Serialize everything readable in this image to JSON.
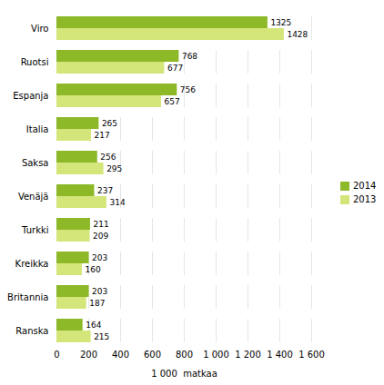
{
  "chart_data": {
    "type": "bar",
    "orientation": "horizontal",
    "categories": [
      "Viro",
      "Ruotsi",
      "Espanja",
      "Italia",
      "Saksa",
      "Venäjä",
      "Turkki",
      "Kreikka",
      "Britannia",
      "Ranska"
    ],
    "series": [
      {
        "name": "2014",
        "color": "#8db828",
        "values": [
          1325,
          768,
          756,
          265,
          256,
          237,
          211,
          203,
          203,
          164
        ]
      },
      {
        "name": "2013",
        "color": "#d4e67a",
        "values": [
          1428,
          677,
          657,
          217,
          295,
          314,
          209,
          160,
          187,
          215
        ]
      }
    ],
    "xlabel": "1 000  matkaa",
    "xlim": [
      0,
      1600
    ],
    "xticks": [
      0,
      200,
      400,
      600,
      800,
      {
        "value": 1000,
        "label": "1 000"
      },
      {
        "value": 1200,
        "label": "1 200"
      },
      {
        "value": 1400,
        "label": "1 400"
      },
      {
        "value": 1600,
        "label": "1 600"
      }
    ],
    "grid": true,
    "data_labels": true,
    "legend": "right"
  }
}
